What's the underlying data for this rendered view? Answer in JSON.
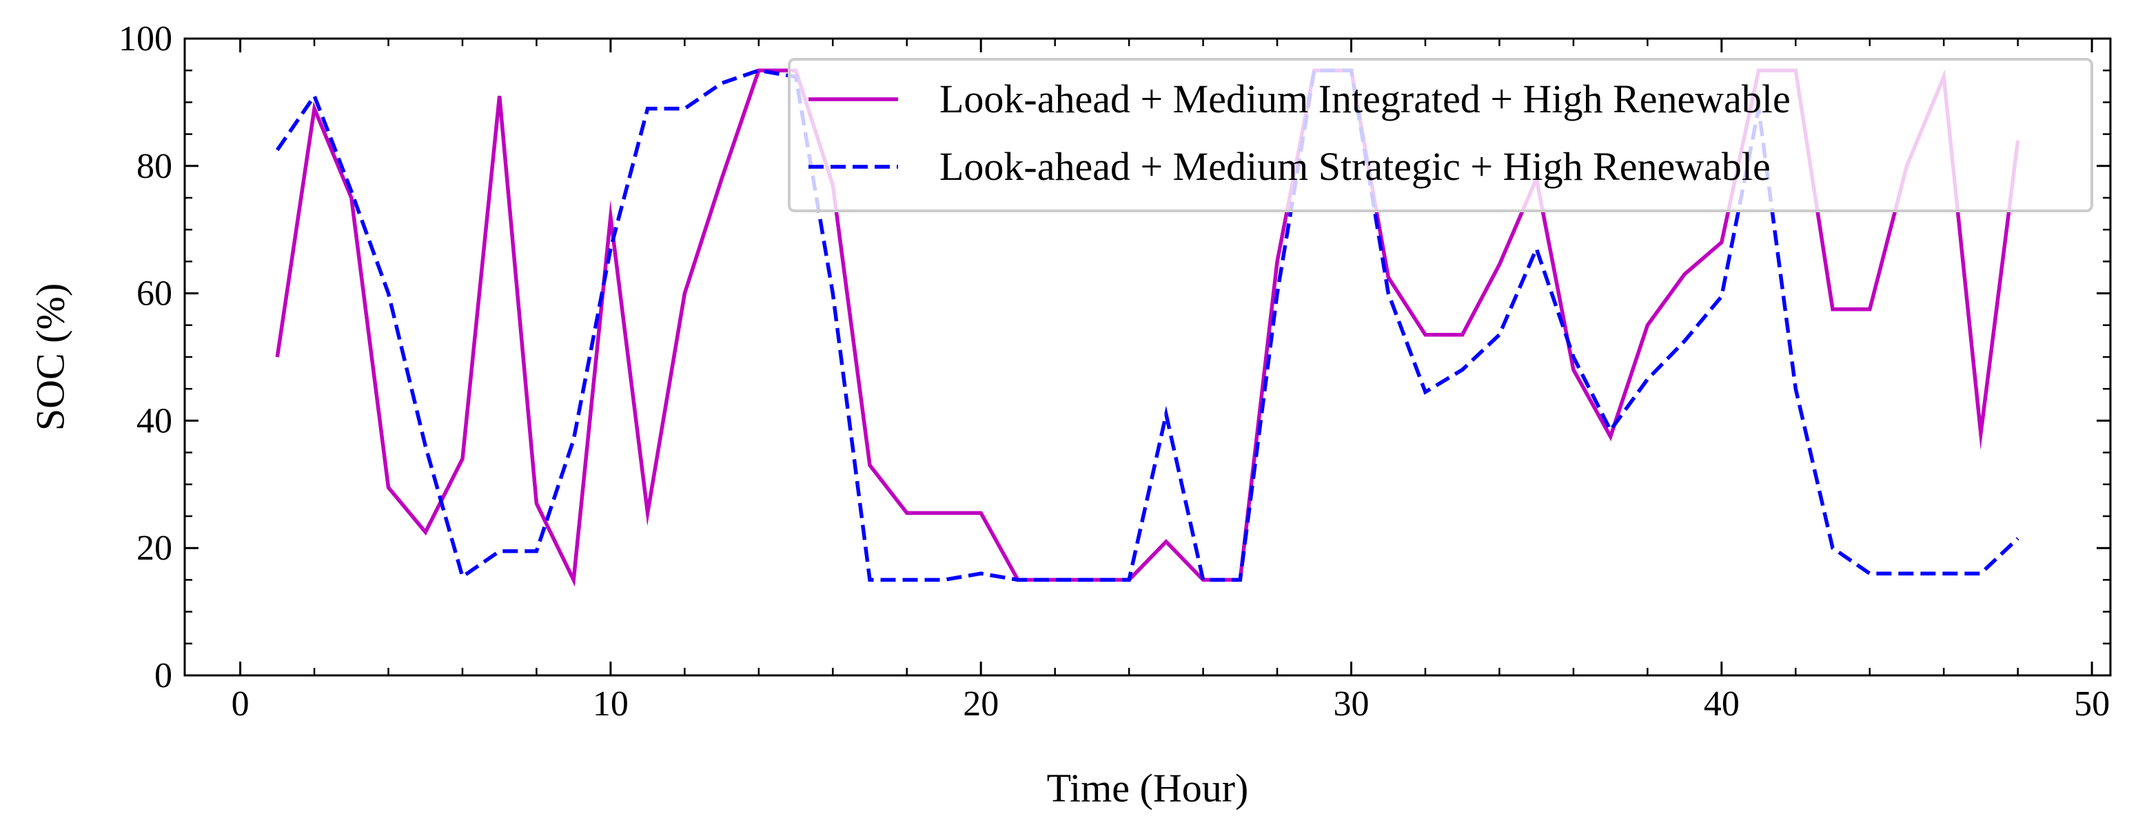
{
  "chart_data": {
    "type": "line",
    "xlabel": "Time (Hour)",
    "ylabel": "SOC (%)",
    "xlim": [
      -1.5,
      50.5
    ],
    "ylim": [
      0,
      100
    ],
    "xticks": [
      0,
      10,
      20,
      30,
      40,
      50
    ],
    "yticks": [
      0,
      20,
      40,
      60,
      80,
      100
    ],
    "x_minor_step": 2,
    "y_minor_step": 5,
    "grid": false,
    "legend_position": "top-right",
    "x": [
      1,
      2,
      3,
      4,
      5,
      6,
      7,
      8,
      9,
      10,
      11,
      12,
      13,
      14,
      15,
      16,
      17,
      18,
      19,
      20,
      21,
      22,
      23,
      24,
      25,
      26,
      27,
      28,
      29,
      30,
      31,
      32,
      33,
      34,
      35,
      36,
      37,
      38,
      39,
      40,
      41,
      42,
      43,
      44,
      45,
      46,
      47,
      48
    ],
    "series": [
      {
        "name": "Look-ahead + Medium Integrated + High Renewable",
        "color": "#BF00BF",
        "style": "solid",
        "values": [
          50,
          89,
          75,
          29.5,
          22.5,
          34,
          91,
          27,
          15,
          72,
          25.5,
          60,
          78,
          95,
          95,
          77,
          33,
          25.5,
          25.5,
          25.5,
          15,
          15,
          15,
          15,
          21,
          15,
          15,
          65,
          95,
          95,
          62.5,
          53.5,
          53.5,
          64.5,
          78,
          48,
          37.5,
          55,
          63,
          68,
          95,
          95,
          57.5,
          57.5,
          80,
          94,
          38,
          84
        ]
      },
      {
        "name": "Look-ahead + Medium Strategic + High Renewable",
        "color": "#0000FF",
        "style": "dashed",
        "values": [
          82.5,
          91,
          76,
          60,
          36,
          15.5,
          19.5,
          19.5,
          37,
          67,
          89,
          89,
          93,
          95,
          94,
          60,
          15,
          15,
          15,
          16,
          15,
          15,
          15,
          15,
          41,
          15,
          15,
          60,
          95,
          95,
          60,
          44.5,
          48,
          53.5,
          67,
          50,
          38.5,
          46.5,
          52.5,
          59.5,
          89,
          45,
          20,
          16,
          16,
          16,
          16,
          21.5
        ]
      }
    ]
  }
}
